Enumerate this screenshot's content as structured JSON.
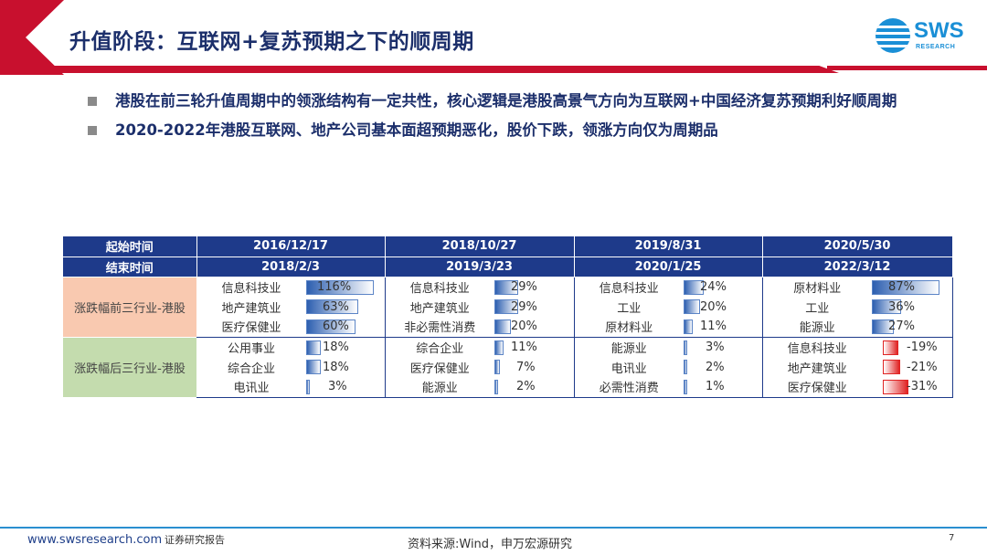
{
  "header": {
    "title": "升值阶段：互联网+复苏预期之下的顺周期",
    "logo_text": "SWS",
    "logo_sub": "RESEARCH"
  },
  "bullets": [
    "港股在前三轮升值周期中的领涨结构有一定共性，核心逻辑是港股高景气方向为互联网+中国经济复苏预期利好顺周期",
    "2020-2022年港股互联网、地产公司基本面超预期恶化，股价下跌，领涨方向仅为周期品"
  ],
  "table": {
    "start_label": "起始时间",
    "end_label": "结束时间",
    "periods": [
      {
        "start": "2016/12/17",
        "end": "2018/2/3"
      },
      {
        "start": "2018/10/27",
        "end": "2019/3/23"
      },
      {
        "start": "2019/8/31",
        "end": "2020/1/25"
      },
      {
        "start": "2020/5/30",
        "end": "2022/3/12"
      }
    ],
    "up_label": "涨跌幅前三行业-港股",
    "down_label": "涨跌幅后三行业-港股",
    "up_rows": [
      [
        [
          "信息科技业",
          "116%",
          1.16
        ],
        [
          "信息科技业",
          "29%",
          0.29
        ],
        [
          "信息科技业",
          "24%",
          0.24
        ],
        [
          "原材料业",
          "87%",
          0.87
        ]
      ],
      [
        [
          "地产建筑业",
          "63%",
          0.63
        ],
        [
          "地产建筑业",
          "29%",
          0.29
        ],
        [
          "工业",
          "20%",
          0.2
        ],
        [
          "工业",
          "36%",
          0.36
        ]
      ],
      [
        [
          "医疗保健业",
          "60%",
          0.6
        ],
        [
          "非必需性消费",
          "20%",
          0.2
        ],
        [
          "原材料业",
          "11%",
          0.11
        ],
        [
          "能源业",
          "27%",
          0.27
        ]
      ]
    ],
    "down_rows": [
      [
        [
          "公用事业",
          "18%",
          0.18
        ],
        [
          "综合企业",
          "11%",
          0.11
        ],
        [
          "能源业",
          "3%",
          0.03
        ],
        [
          "信息科技业",
          "-19%",
          -0.19
        ]
      ],
      [
        [
          "综合企业",
          "18%",
          0.18
        ],
        [
          "医疗保健业",
          "7%",
          0.07
        ],
        [
          "电讯业",
          "2%",
          0.02
        ],
        [
          "地产建筑业",
          "-21%",
          -0.21
        ]
      ],
      [
        [
          "电讯业",
          "3%",
          0.03
        ],
        [
          "能源业",
          "2%",
          0.02
        ],
        [
          "必需性消费",
          "1%",
          0.01
        ],
        [
          "医疗保健业",
          "-31%",
          -0.31
        ]
      ]
    ]
  },
  "footer": {
    "url": "www.swsresearch.com",
    "report": "证券研究报告",
    "source": "资料来源:Wind，申万宏源研究",
    "page": "7"
  }
}
